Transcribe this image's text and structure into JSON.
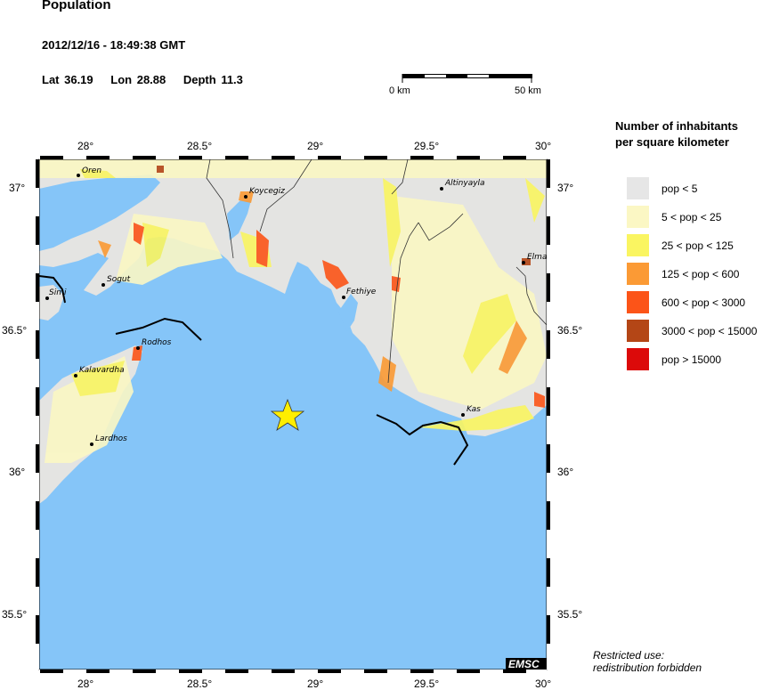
{
  "header": {
    "title": "Population",
    "datetime": "2012/12/16 - 18:49:38 GMT",
    "lat_label": "Lat 36.19",
    "lon_label": "Lon  28.88",
    "depth_label": "Depth  11.3"
  },
  "scale_bar": {
    "start_label": "0 km",
    "end_label": "50 km"
  },
  "map": {
    "lon_range": [
      27.8,
      30.0
    ],
    "lat_range": [
      35.3,
      37.1
    ],
    "lon_ticks": [
      "28°",
      "28.5°",
      "29°",
      "29.5°",
      "30°"
    ],
    "lat_ticks": [
      "37°",
      "36.5°",
      "36°",
      "35.5°"
    ],
    "sea_color": "#85c5f8",
    "epicenter": {
      "lat": 36.19,
      "lon": 28.88,
      "icon": "star-icon",
      "color": "#ffee00"
    },
    "cities": [
      {
        "name": "Oren"
      },
      {
        "name": "Koycegiz"
      },
      {
        "name": "Altinyayla"
      },
      {
        "name": "Elma"
      },
      {
        "name": "Sogut"
      },
      {
        "name": "Simi"
      },
      {
        "name": "Fethiye"
      },
      {
        "name": "Rodhos"
      },
      {
        "name": "Kalavardha"
      },
      {
        "name": "Kas"
      },
      {
        "name": "Lardhos"
      }
    ],
    "logo": "EMSC"
  },
  "legend": {
    "title_line1": "Number of inhabitants",
    "title_line2": "per square kilometer",
    "items": [
      {
        "label": "pop < 5",
        "color": "#e6e6e6"
      },
      {
        "label": "5 < pop < 25",
        "color": "#fbf7c4"
      },
      {
        "label": "25 < pop < 125",
        "color": "#faf561"
      },
      {
        "label": "125 < pop < 600",
        "color": "#fb9a35"
      },
      {
        "label": "600 < pop < 3000",
        "color": "#fc5418"
      },
      {
        "label": "3000 < pop < 15000",
        "color": "#b44616"
      },
      {
        "label": "pop > 15000",
        "color": "#dc0a0a"
      }
    ]
  },
  "footer": {
    "line1": "Restricted use:",
    "line2": "redistribution forbidden"
  }
}
